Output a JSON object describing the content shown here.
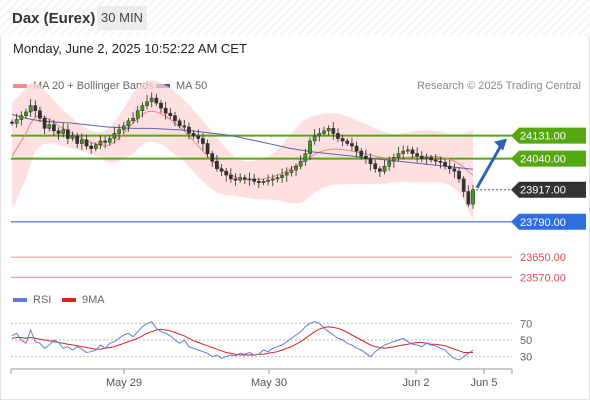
{
  "header": {
    "title": "Dax (Eurex)",
    "timeframe": "30 MIN"
  },
  "datetime": "Monday, June 2, 2025 10:52:22 AM CET",
  "legend": {
    "bollinger": {
      "label": "MA 20 + Bollinger Bands",
      "color": "#f48a8a"
    },
    "ma50": {
      "label": "MA 50",
      "color": "#3a5fa8"
    }
  },
  "credit": "Research © 2025 Trading Central",
  "rsi_legend": {
    "rsi": {
      "label": "RSI",
      "color": "#5b7fd6"
    },
    "ma9": {
      "label": "9MA",
      "color": "#e02020"
    }
  },
  "chart_data": {
    "type": "candlestick",
    "price_range": [
      23520,
      24300
    ],
    "x_labels": [
      "May 29",
      "May 30",
      "Jun 2",
      "Jun 5"
    ],
    "levels": [
      {
        "value": 24131,
        "label": "24131.00",
        "style": "resistance",
        "color": "#55a80f"
      },
      {
        "value": 24040,
        "label": "24040.00",
        "style": "resistance",
        "color": "#55a80f"
      },
      {
        "value": 23917,
        "label": "23917.00",
        "style": "current",
        "color": "#333333"
      },
      {
        "value": 23790,
        "label": "23790.00",
        "style": "pivot",
        "color": "#2f6ee0"
      },
      {
        "value": 23650,
        "label": "23650.00",
        "style": "support",
        "color": "#e34b4b"
      },
      {
        "value": 23570,
        "label": "23570.00",
        "style": "support",
        "color": "#e34b4b"
      }
    ],
    "closes": [
      24180,
      24195,
      24210,
      24225,
      24250,
      24230,
      24200,
      24160,
      24175,
      24150,
      24140,
      24155,
      24120,
      24130,
      24100,
      24115,
      24090,
      24080,
      24095,
      24110,
      24105,
      24120,
      24140,
      24155,
      24170,
      24190,
      24200,
      24230,
      24250,
      24265,
      24280,
      24260,
      24240,
      24220,
      24210,
      24190,
      24170,
      24165,
      24140,
      24130,
      24120,
      24100,
      24060,
      24030,
      24000,
      23990,
      23975,
      23960,
      23955,
      23965,
      23958,
      23960,
      23950,
      23945,
      23950,
      23955,
      23960,
      23965,
      23975,
      23985,
      23995,
      24010,
      24030,
      24060,
      24110,
      24130,
      24140,
      24150,
      24160,
      24140,
      24120,
      24110,
      24100,
      24090,
      24070,
      24050,
      24040,
      24020,
      24000,
      23990,
      24010,
      24030,
      24045,
      24060,
      24070,
      24075,
      24060,
      24050,
      24040,
      24045,
      24035,
      24030,
      24025,
      24010,
      24000,
      23990,
      23960,
      23910,
      23860,
      23917
    ],
    "ma20": [
      24050,
      24080,
      24110,
      24140,
      24180,
      24205,
      24210,
      24205,
      24195,
      24185,
      24170,
      24160,
      24150,
      24140,
      24130,
      24120,
      24112,
      24105,
      24098,
      24092,
      24090,
      24095,
      24105,
      24120,
      24140,
      24160,
      24180,
      24200,
      24215,
      24225,
      24228,
      24225,
      24218,
      24208,
      24195,
      24180,
      24165,
      24150,
      24130,
      24110,
      24090,
      24070,
      24050,
      24032,
      24015,
      24000,
      23988,
      23977,
      23968,
      23962,
      23958,
      23957,
      23956,
      23957,
      23960,
      23963,
      23968,
      23975,
      23983,
      23992,
      24002,
      24012,
      24022,
      24034,
      24048,
      24058,
      24066,
      24072,
      24076,
      24078,
      24078,
      24076,
      24073,
      24070,
      24066,
      24062,
      24058,
      24054,
      24050,
      24046,
      24043,
      24042,
      24042,
      24043,
      24044,
      24046,
      24047,
      24048,
      24049,
      24050,
      24049,
      24048,
      24046,
      24042,
      24037,
      24030,
      24020,
      24007,
      23990,
      23975
    ],
    "ma50": [
      24215,
      24210,
      24205,
      24200,
      24196,
      24193,
      24190,
      24188,
      24186,
      24185,
      24184,
      24183,
      24182,
      24180,
      24178,
      24176,
      24174,
      24172,
      24170,
      24168,
      24166,
      24165,
      24164,
      24163,
      24162,
      24161,
      24160,
      24160,
      24160,
      24160,
      24160,
      24159,
      24158,
      24157,
      24156,
      24155,
      24154,
      24153,
      24151,
      24149,
      24147,
      24145,
      24143,
      24141,
      24139,
      24137,
      24134,
      24131,
      24128,
      24124,
      24120,
      24116,
      24112,
      24108,
      24104,
      24100,
      24096,
      24092,
      24088,
      24084,
      24080,
      24077,
      24074,
      24071,
      24068,
      24066,
      24064,
      24062,
      24060,
      24058,
      24056,
      24054,
      24052,
      24050,
      24048,
      24046,
      24044,
      24042,
      24040,
      24038,
      24036,
      24034,
      24032,
      24030,
      24028,
      24026,
      24024,
      24022,
      24020,
      24018,
      24016,
      24014,
      24012,
      24010,
      24008,
      24006,
      24004,
      24002,
      24000,
      23998
    ],
    "bb_upper": [
      24260,
      24280,
      24300,
      24320,
      24340,
      24340,
      24330,
      24310,
      24290,
      24270,
      24250,
      24230,
      24215,
      24200,
      24185,
      24172,
      24160,
      24150,
      24145,
      24145,
      24150,
      24165,
      24185,
      24210,
      24240,
      24270,
      24300,
      24320,
      24335,
      24345,
      24350,
      24348,
      24340,
      24330,
      24320,
      24305,
      24290,
      24272,
      24252,
      24232,
      24212,
      24190,
      24168,
      24146,
      24124,
      24102,
      24080,
      24060,
      24045,
      24035,
      24030,
      24030,
      24032,
      24035,
      24040,
      24048,
      24060,
      24075,
      24095,
      24118,
      24140,
      24160,
      24180,
      24195,
      24205,
      24210,
      24215,
      24218,
      24220,
      24220,
      24218,
      24214,
      24208,
      24200,
      24192,
      24184,
      24176,
      24168,
      24160,
      24152,
      24145,
      24140,
      24138,
      24138,
      24140,
      24144,
      24148,
      24150,
      24152,
      24154,
      24152,
      24150,
      24147,
      24143,
      24140,
      24138,
      24138,
      24140,
      24145,
      24150
    ],
    "bb_lower": [
      23840,
      23880,
      23920,
      23960,
      24020,
      24070,
      24090,
      24100,
      24100,
      24100,
      24090,
      24090,
      24085,
      24080,
      24075,
      24068,
      24064,
      24060,
      24051,
      24039,
      24030,
      24025,
      24025,
      24030,
      24040,
      24050,
      24060,
      24080,
      24095,
      24105,
      24106,
      24102,
      24096,
      24086,
      24070,
      24055,
      24040,
      24028,
      24008,
      23988,
      23968,
      23950,
      23932,
      23918,
      23906,
      23898,
      23896,
      23894,
      23891,
      23889,
      23886,
      23884,
      23880,
      23879,
      23880,
      23878,
      23876,
      23875,
      23871,
      23866,
      23864,
      23864,
      23864,
      23873,
      23891,
      23906,
      23917,
      23926,
      23932,
      23936,
      23938,
      23938,
      23938,
      23940,
      23940,
      23940,
      23940,
      23940,
      23940,
      23940,
      23941,
      23944,
      23946,
      23948,
      23948,
      23948,
      23946,
      23946,
      23946,
      23946,
      23946,
      23946,
      23945,
      23941,
      23934,
      23922,
      23902,
      23874,
      23835,
      23800
    ],
    "rsi": [
      55,
      58,
      50,
      46,
      62,
      48,
      46,
      40,
      44,
      50,
      47,
      40,
      42,
      38,
      42,
      39,
      35,
      36,
      38,
      44,
      40,
      46,
      48,
      52,
      56,
      58,
      54,
      60,
      66,
      70,
      72,
      64,
      60,
      58,
      55,
      50,
      46,
      50,
      42,
      40,
      38,
      36,
      34,
      30,
      32,
      28,
      30,
      32,
      31,
      34,
      33,
      35,
      32,
      33,
      38,
      36,
      40,
      42,
      44,
      48,
      52,
      56,
      60,
      66,
      70,
      72,
      70,
      64,
      60,
      56,
      52,
      50,
      46,
      44,
      40,
      38,
      34,
      30,
      36,
      40,
      44,
      46,
      48,
      50,
      52,
      48,
      45,
      44,
      42,
      46,
      44,
      43,
      40,
      38,
      32,
      28,
      26,
      30,
      34,
      38
    ],
    "rsi_ma9": [
      52,
      53,
      53,
      52,
      53,
      52,
      51,
      50,
      49,
      48,
      47,
      46,
      45,
      44,
      43,
      42,
      41,
      40,
      39,
      39,
      40,
      41,
      42,
      44,
      46,
      48,
      50,
      52,
      55,
      58,
      60,
      62,
      63,
      62,
      61,
      59,
      57,
      55,
      52,
      49,
      47,
      45,
      43,
      41,
      39,
      37,
      35,
      34,
      33,
      32,
      32,
      32,
      32,
      33,
      33,
      34,
      35,
      36,
      38,
      40,
      42,
      45,
      48,
      52,
      56,
      60,
      63,
      65,
      66,
      65,
      64,
      62,
      59,
      56,
      53,
      50,
      47,
      44,
      42,
      41,
      40,
      41,
      42,
      43,
      44,
      45,
      46,
      47,
      47,
      46,
      45,
      45,
      44,
      43,
      41,
      39,
      37,
      35,
      35,
      35
    ],
    "rsi_levels": [
      70,
      50,
      30
    ]
  }
}
